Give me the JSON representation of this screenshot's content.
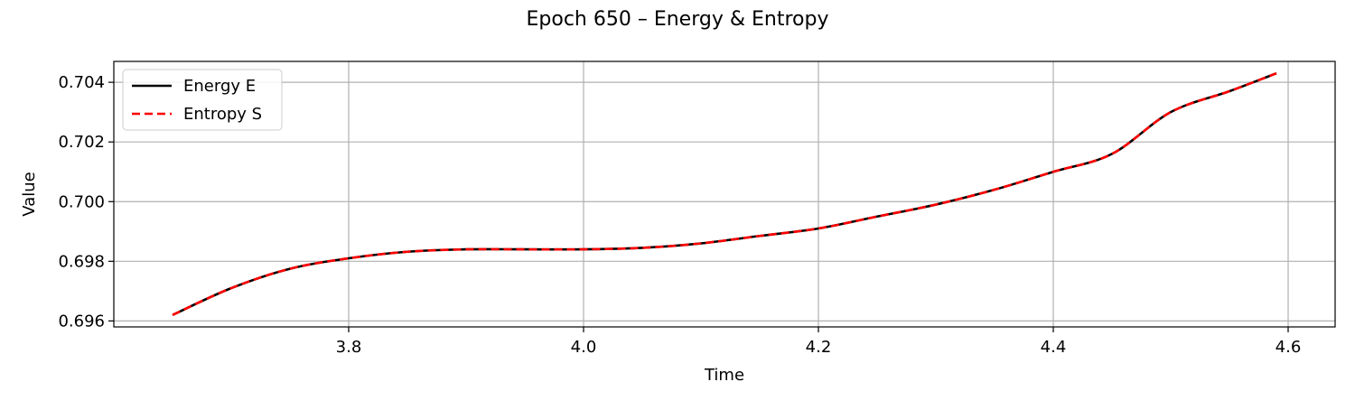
{
  "chart_data": {
    "type": "line",
    "title": "Epoch 650 – Energy & Entropy",
    "xlabel": "Time",
    "ylabel": "Value",
    "xlim": [
      3.6,
      4.64
    ],
    "ylim": [
      0.6958,
      0.7047
    ],
    "xticks": [
      3.8,
      4.0,
      4.2,
      4.4,
      4.6
    ],
    "xtick_labels": [
      "3.8",
      "4.0",
      "4.2",
      "4.4",
      "4.6"
    ],
    "yticks": [
      0.696,
      0.698,
      0.7,
      0.702,
      0.704
    ],
    "ytick_labels": [
      "0.696",
      "0.698",
      "0.700",
      "0.702",
      "0.704"
    ],
    "grid": true,
    "legend_position": "top-left",
    "x": [
      3.65,
      3.7,
      3.75,
      3.8,
      3.85,
      3.9,
      3.95,
      4.0,
      4.05,
      4.1,
      4.15,
      4.2,
      4.25,
      4.3,
      4.35,
      4.4,
      4.45,
      4.5,
      4.55,
      4.59
    ],
    "series": [
      {
        "name": "Energy E",
        "color": "#000000",
        "style": "solid",
        "values": [
          0.6962,
          0.6971,
          0.69775,
          0.6981,
          0.69832,
          0.6984,
          0.6984,
          0.6984,
          0.69845,
          0.6986,
          0.69885,
          0.6991,
          0.6995,
          0.6999,
          0.7004,
          0.701,
          0.7016,
          0.703,
          0.7037,
          0.7043
        ]
      },
      {
        "name": "Entropy S",
        "color": "#ff0000",
        "style": "dashed",
        "values": [
          0.6962,
          0.6971,
          0.69775,
          0.6981,
          0.69832,
          0.6984,
          0.6984,
          0.6984,
          0.69845,
          0.6986,
          0.69885,
          0.6991,
          0.6995,
          0.6999,
          0.7004,
          0.701,
          0.7016,
          0.703,
          0.7037,
          0.7043
        ]
      }
    ]
  }
}
